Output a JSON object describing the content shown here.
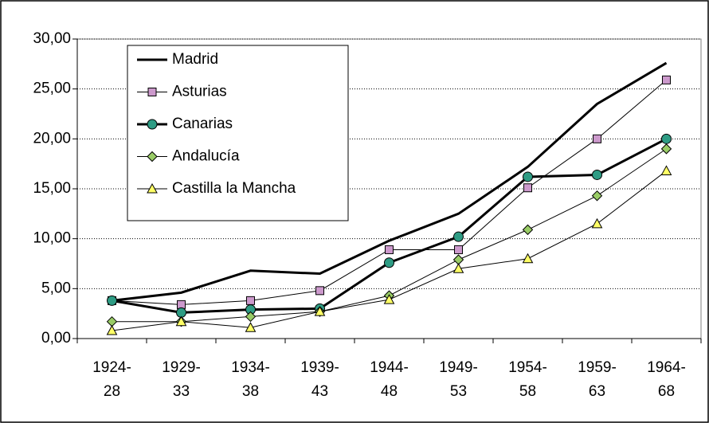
{
  "chart_data": {
    "type": "line",
    "categories": [
      "1924-28",
      "1929-33",
      "1934-38",
      "1939-43",
      "1944-48",
      "1949-53",
      "1954-58",
      "1959-63",
      "1964-68"
    ],
    "series": [
      {
        "name": "Madrid",
        "color": "#000000",
        "marker": "none",
        "line_width": 3,
        "values": [
          3.8,
          4.6,
          6.8,
          6.5,
          9.8,
          12.5,
          17.2,
          23.5,
          27.6
        ]
      },
      {
        "name": "Asturias",
        "color": "#cc99cc",
        "marker": "square",
        "line_width": 1,
        "values": [
          3.8,
          3.4,
          3.8,
          4.8,
          8.9,
          8.9,
          15.1,
          20.0,
          25.9
        ]
      },
      {
        "name": "Canarias",
        "color": "#2e9c84",
        "marker": "circle",
        "line_width": 3,
        "values": [
          3.8,
          2.6,
          2.9,
          3.0,
          7.6,
          10.2,
          16.2,
          16.4,
          20.0
        ]
      },
      {
        "name": "Andalucía",
        "color": "#99cc66",
        "marker": "diamond",
        "line_width": 1,
        "values": [
          1.7,
          1.7,
          2.2,
          2.7,
          4.3,
          7.9,
          10.9,
          14.3,
          19.0
        ]
      },
      {
        "name": "Castilla la Mancha",
        "color": "#ffff66",
        "marker": "triangle",
        "line_width": 1,
        "values": [
          0.8,
          1.7,
          1.1,
          2.7,
          3.9,
          7.0,
          8.0,
          11.5,
          16.8
        ]
      }
    ],
    "line_color": "#000000",
    "ylim": [
      0,
      30
    ],
    "yticks": [
      {
        "value": 0,
        "label": "0,00"
      },
      {
        "value": 5,
        "label": "5,00"
      },
      {
        "value": 10,
        "label": "10,00"
      },
      {
        "value": 15,
        "label": "15,00"
      },
      {
        "value": 20,
        "label": "20,00"
      },
      {
        "value": 25,
        "label": "25,00"
      },
      {
        "value": 30,
        "label": "30,00"
      }
    ],
    "grid": true,
    "legend": "top-left"
  }
}
